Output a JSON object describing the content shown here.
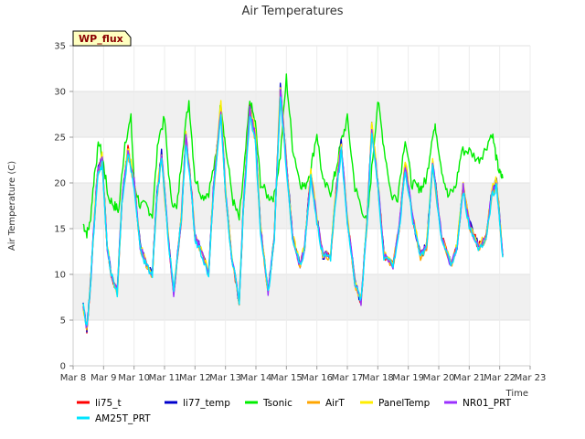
{
  "chart_data": {
    "type": "line",
    "title": "Air Temperatures",
    "xlabel": "Time",
    "ylabel": "Air Temperature (C)",
    "site_label": "WP_flux",
    "ylim": [
      0,
      35
    ],
    "yticks": [
      0,
      5,
      10,
      15,
      20,
      25,
      30,
      35
    ],
    "xlim": [
      8,
      23
    ],
    "xticks": [
      {
        "v": 8,
        "label": "Mar 8"
      },
      {
        "v": 9,
        "label": "Mar 9"
      },
      {
        "v": 10,
        "label": "Mar 10"
      },
      {
        "v": 11,
        "label": "Mar 11"
      },
      {
        "v": 12,
        "label": "Mar 12"
      },
      {
        "v": 13,
        "label": "Mar 13"
      },
      {
        "v": 14,
        "label": "Mar 14"
      },
      {
        "v": 15,
        "label": "Mar 15"
      },
      {
        "v": 16,
        "label": "Mar 16"
      },
      {
        "v": 17,
        "label": "Mar 17"
      },
      {
        "v": 18,
        "label": "Mar 18"
      },
      {
        "v": 19,
        "label": "Mar 19"
      },
      {
        "v": 20,
        "label": "Mar 20"
      },
      {
        "v": 21,
        "label": "Mar 21"
      },
      {
        "v": 22,
        "label": "Mar 22"
      },
      {
        "v": 23,
        "label": "Mar 23"
      }
    ],
    "grid": "horizontal bands",
    "legend_position": "bottom",
    "base_series": {
      "x": [
        8.33,
        8.45,
        8.55,
        8.68,
        8.8,
        8.95,
        9.12,
        9.25,
        9.45,
        9.6,
        9.8,
        10.0,
        10.2,
        10.4,
        10.6,
        10.75,
        10.9,
        11.15,
        11.3,
        11.55,
        11.7,
        11.9,
        12.0,
        12.15,
        12.45,
        12.6,
        12.85,
        13.0,
        13.2,
        13.45,
        13.6,
        13.8,
        13.98,
        14.15,
        14.4,
        14.6,
        14.8,
        15.0,
        15.2,
        15.45,
        15.6,
        15.8,
        16.0,
        16.2,
        16.45,
        16.6,
        16.8,
        17.0,
        17.25,
        17.45,
        17.65,
        17.8,
        18.0,
        18.2,
        18.5,
        18.7,
        18.9,
        19.15,
        19.4,
        19.6,
        19.8,
        20.1,
        20.4,
        20.6,
        20.8,
        21.0,
        21.3,
        21.55,
        21.75,
        21.9,
        22.1
      ],
      "y": [
        6.5,
        4.0,
        8.0,
        15.0,
        21.0,
        22.5,
        13.0,
        10.0,
        8.0,
        18.0,
        23.5,
        20.0,
        13.0,
        11.0,
        10.0,
        18.5,
        23.0,
        13.0,
        8.0,
        16.0,
        25.0,
        18.5,
        14.0,
        13.0,
        10.0,
        19.0,
        28.0,
        19.0,
        12.0,
        7.0,
        18.0,
        28.0,
        25.0,
        15.0,
        8.0,
        14.0,
        30.0,
        22.0,
        14.0,
        11.0,
        13.0,
        21.0,
        16.0,
        12.0,
        12.0,
        18.0,
        24.0,
        16.0,
        9.0,
        7.0,
        16.0,
        26.0,
        20.0,
        12.0,
        11.0,
        15.0,
        22.0,
        16.0,
        12.0,
        13.0,
        22.0,
        14.0,
        11.0,
        13.0,
        19.5,
        15.5,
        13.0,
        14.0,
        19.0,
        20.0,
        12.0
      ]
    },
    "tsonic_series": {
      "x": [
        8.33,
        8.45,
        8.55,
        8.7,
        8.85,
        9.0,
        9.15,
        9.35,
        9.5,
        9.7,
        9.9,
        10.0,
        10.2,
        10.4,
        10.6,
        10.8,
        11.0,
        11.2,
        11.4,
        11.6,
        11.8,
        12.0,
        12.25,
        12.45,
        12.7,
        12.85,
        13.0,
        13.25,
        13.45,
        13.6,
        13.8,
        13.98,
        14.15,
        14.4,
        14.6,
        14.8,
        15.0,
        15.2,
        15.45,
        15.6,
        15.8,
        16.0,
        16.2,
        16.45,
        16.6,
        16.8,
        17.0,
        17.25,
        17.4,
        17.65,
        17.8,
        18.0,
        18.2,
        18.45,
        18.65,
        18.9,
        19.1,
        19.3,
        19.45,
        19.6,
        19.8,
        19.9,
        20.1,
        20.3,
        20.55,
        20.75,
        21.0,
        21.3,
        21.5,
        21.75,
        21.9,
        22.0,
        22.1
      ],
      "y": [
        15.5,
        14.5,
        15.5,
        21.0,
        24.5,
        22.0,
        18.5,
        17.5,
        17.0,
        24.5,
        27.0,
        20.0,
        17.5,
        17.5,
        16.5,
        25.0,
        27.0,
        18.5,
        17.0,
        24.0,
        29.0,
        20.5,
        18.5,
        19.0,
        23.0,
        29.0,
        24.0,
        18.0,
        16.0,
        21.0,
        29.0,
        26.5,
        20.0,
        18.5,
        18.5,
        23.0,
        31.5,
        24.0,
        20.0,
        19.5,
        21.5,
        25.5,
        20.0,
        19.0,
        21.0,
        24.5,
        27.0,
        19.5,
        18.0,
        15.5,
        21.5,
        29.0,
        24.0,
        18.5,
        18.5,
        25.0,
        20.0,
        19.5,
        19.5,
        20.5,
        25.5,
        26.0,
        21.5,
        18.5,
        19.5,
        23.5,
        23.5,
        22.5,
        23.5,
        25.5,
        22.5,
        21.0,
        20.5
      ]
    },
    "series": [
      {
        "name": "li75_t",
        "color": "#ff0000",
        "offset": 0.3
      },
      {
        "name": "li77_temp",
        "color": "#0000cc",
        "offset": 0.5
      },
      {
        "name": "Tsonic",
        "color": "#00ee00",
        "offset": 0
      },
      {
        "name": "AirT",
        "color": "#ffa500",
        "offset": -0.3
      },
      {
        "name": "PanelTemp",
        "color": "#ffee00",
        "offset": 0.8
      },
      {
        "name": "NR01_PRT",
        "color": "#9b30ff",
        "offset": 0.2
      },
      {
        "name": "AM25T_PRT",
        "color": "#00e5ff",
        "offset": -0.7
      }
    ]
  }
}
